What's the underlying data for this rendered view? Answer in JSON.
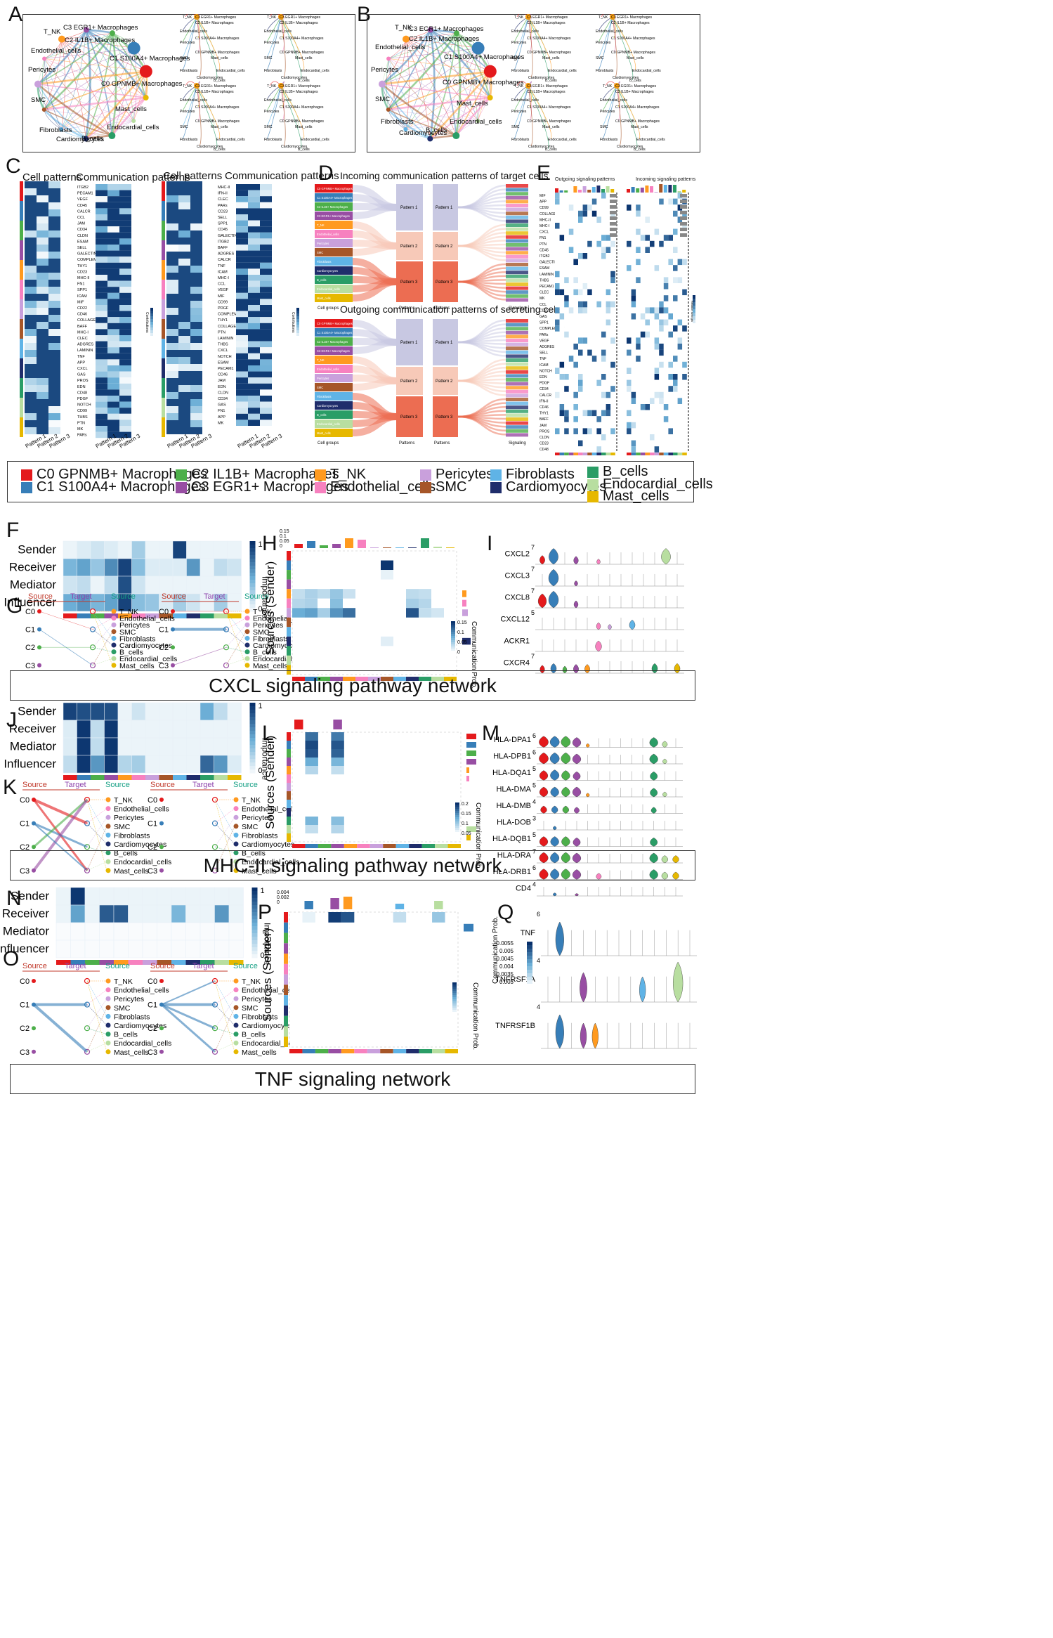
{
  "panel_letters": {
    "A": "A",
    "B": "B",
    "C": "C",
    "D": "D",
    "E": "E",
    "F": "F",
    "G": "G",
    "H": "H",
    "I": "I",
    "J": "J",
    "K": "K",
    "L": "L",
    "M": "M",
    "N": "N",
    "O": "O",
    "P": "P",
    "Q": "Q"
  },
  "cells": [
    "C0 GPNMB+ Macrophages",
    "C1 S100A4+ Macrophages",
    "C2 IL1B+ Macrophages",
    "C3 EGR1+ Macrophages",
    "T_NK",
    "Endothelial_cells",
    "Pericytes",
    "SMC",
    "Fibroblasts",
    "Cardiomyocytes",
    "B_cells",
    "Endocardial_cells",
    "Mast_cells"
  ],
  "cell_colors": [
    "#e41a1c",
    "#377eb8",
    "#4daf4a",
    "#984ea3",
    "#ff9a1f",
    "#f781bf",
    "#c9a0dc",
    "#a65628",
    "#5fb3e6",
    "#1f2d6b",
    "#2a9d66",
    "#b8dea0",
    "#e6b800"
  ],
  "panelA": {
    "big_labels": [
      "T_NK",
      "C3 EGR1+ Macrophages",
      "C2 IL1B+ Macrophages",
      "C1 S100A4+ Macrophages",
      "C0 GPNMB+ Macrophages",
      "Endothelial_cells",
      "Pericytes",
      "SMC",
      "Fibroblasts",
      "Cardiomyocytes",
      "B_cells",
      "Endocardial_cells",
      "Mast_cells"
    ],
    "small_labels": [
      "T_NK",
      "C3 EGR1+ Macrophages",
      "C2 IL1B+ Macrophages",
      "Endothelial_cells",
      "C1 S100A4+ Macrophages",
      "Pericytes",
      "C0 GPNMB+ Macrophages",
      "SMC",
      "Mast_cells",
      "Fibroblasts",
      "Endocardial_cells",
      "Cardiomyocytes",
      "B_cells"
    ]
  },
  "panelC": {
    "title_cell": "Cell patterns",
    "title_comm": "Communication patterns",
    "legend_title": "Contributions",
    "patterns": [
      "Pattern 1",
      "Pattern 2",
      "Pattern 3"
    ],
    "left_pathways": [
      "ITGB2",
      "PECAM1",
      "VEGF",
      "CD45",
      "CALCR",
      "CCL",
      "JAM",
      "CD34",
      "CLDN",
      "ESAM",
      "SELL",
      "GALECTIN",
      "COMPLEMENT",
      "THY1",
      "CD23",
      "MHC-II",
      "FN1",
      "SPP1",
      "ICAM",
      "MIF",
      "CD22",
      "CD46",
      "COLLAGEN",
      "BAFF",
      "MHC-I",
      "CLEC",
      "ADGRES",
      "LAMININ",
      "TNF",
      "APP",
      "CXCL",
      "GAS",
      "PROS",
      "EDN",
      "CD48",
      "PDGF",
      "NOTCH",
      "CD99",
      "THBS",
      "PTN",
      "MK",
      "PARs"
    ],
    "right_pathways": [
      "MHC-II",
      "IFN-II",
      "CLEC",
      "PARs",
      "CD23",
      "SELL",
      "SPP1",
      "CD45",
      "GALECTIN",
      "ITGB2",
      "BAFF",
      "ADGRES",
      "CALCR",
      "TNF",
      "ICAM",
      "MHC-I",
      "CCL",
      "VEGF",
      "MIF",
      "CD99",
      "PDGF",
      "COMPLEMENT",
      "THY1",
      "COLLAGEN",
      "PTN",
      "LAMININ",
      "THBS",
      "CXCL",
      "NOTCH",
      "ESAM",
      "PECAM1",
      "CD46",
      "JAM",
      "EDN",
      "CLDN",
      "CD34",
      "GAS",
      "FN1",
      "APP",
      "MK"
    ]
  },
  "panelD": {
    "title_in": "Incoming communication patterns of target cells",
    "title_out": "Outgoing communication patterns of secreting cells",
    "patterns": [
      "Pattern 1",
      "Pattern 2",
      "Pattern 3"
    ],
    "axis_cell": "Cell groups",
    "axis_pat": "Patterns",
    "axis_sig": "Signaling"
  },
  "panelE": {
    "title_out": "Outgoing signaling patterns",
    "title_in": "Incoming signaling patterns",
    "legend": "Relative strength",
    "pathways": [
      "MIF",
      "APP",
      "CD99",
      "COLLAGEN",
      "MHC-II",
      "MHC-I",
      "CXCL",
      "FN1",
      "PTN",
      "CD45",
      "ITGB2",
      "GALECTIN",
      "ESAM",
      "LAMININ",
      "THBS",
      "PECAM1",
      "CLEC",
      "MK",
      "CCL",
      "CD22",
      "GAS",
      "SPP1",
      "COMPLEMENT",
      "PARs",
      "VEGF",
      "ADGRES",
      "SELL",
      "TNF",
      "ICAM",
      "NOTCH",
      "EDN",
      "PDGF",
      "CD34",
      "CALCR",
      "IFN-II",
      "CD46",
      "THY1",
      "BAFF",
      "JAM",
      "PROS",
      "CLDN",
      "CD23",
      "CD48"
    ]
  },
  "legend": {
    "items": [
      "C0 GPNMB+ Macrophages",
      "C1 S100A4+ Macrophages",
      "C2 IL1B+ Macrophages",
      "C3 EGR1+ Macrophages",
      "T_NK",
      "Endothelial_cells",
      "Pericytes",
      "SMC",
      "Fibroblasts",
      "Cardiomyocytes",
      "B_cells",
      "Endocardial_cells",
      "Mast_cells"
    ]
  },
  "roles": [
    "Sender",
    "Receiver",
    "Mediator",
    "Influencer"
  ],
  "importance": {
    "label": "Importance",
    "max": "1",
    "min": "0"
  },
  "hierarchy": {
    "source": "Source",
    "target": "Target",
    "nodes": [
      "C0",
      "C1",
      "C2",
      "C3"
    ],
    "right_list": [
      "T_NK",
      "Endothelial_cells",
      "Pericytes",
      "SMC",
      "Fibroblasts",
      "Cardiomyocytes",
      "B_cells",
      "Endocardial_cells",
      "Mast_cells"
    ]
  },
  "sources_sender": "Sources (Sender)",
  "comm_prob": "Communication Prob.",
  "cxcl": {
    "banner": "CXCL signaling pathway network",
    "h_top_ticks": [
      "0.15",
      "0.1",
      "0.05",
      "0"
    ],
    "h_legend_ticks": [
      "0.15",
      "0.1",
      "0.05",
      "0"
    ],
    "genes": [
      "CXCL2",
      "CXCL3",
      "CXCL8",
      "CXCL12",
      "ACKR1",
      "CXCR4"
    ],
    "gene_max": [
      "7",
      "7",
      "7",
      "5",
      "",
      "7"
    ]
  },
  "mhc": {
    "banner": "MHC-II signaling pathway network",
    "l_legend_ticks": [
      "0.2",
      "0.15",
      "0.1",
      "0.05"
    ],
    "genes": [
      "HLA-DPA1",
      "HLA-DPB1",
      "HLA-DQA1",
      "HLA-DMA",
      "HLA-DMB",
      "HLA-DOB",
      "HLA-DQB1",
      "HLA-DRA",
      "HLA-DRB1",
      "CD4"
    ],
    "gene_max": [
      "6",
      "6",
      "5",
      "5",
      "4",
      "3",
      "5",
      "7",
      "6",
      "4"
    ]
  },
  "tnf": {
    "banner": "TNF signaling network",
    "p_top_ticks": [
      "0.004",
      "0.002",
      "0"
    ],
    "p_legend_ticks": [
      "0.0055",
      "0.005",
      "0.0045",
      "0.004",
      "0.0035",
      "0.003"
    ],
    "genes": [
      "TNF",
      "TNFRSF1A",
      "TNFRSF1B"
    ],
    "gene_max": [
      "6",
      "4",
      "4"
    ]
  },
  "chart_data": [
    {
      "type": "heatmap",
      "title": "",
      "rows": [
        "Sender",
        "Receiver",
        "Mediator",
        "Influencer"
      ],
      "note": "F CXCL role importance",
      "values": [
        [
          0.05,
          0.1,
          0.15,
          0.1,
          0.05,
          0.3,
          0.05,
          0.05,
          0.95,
          0.05,
          0.05,
          0.05,
          0.05
        ],
        [
          0.45,
          0.55,
          0.35,
          0.65,
          0.95,
          0.4,
          0.1,
          0.1,
          0.1,
          0.6,
          0.05,
          0.2,
          0.15
        ],
        [
          0.15,
          0.2,
          0.05,
          0.2,
          0.9,
          0.15,
          0.05,
          0.05,
          0.05,
          0.05,
          0.05,
          0.05,
          0.05
        ],
        [
          0.5,
          0.6,
          0.45,
          0.55,
          0.95,
          0.4,
          0.35,
          0.1,
          0.3,
          0.15,
          0.05,
          0.3,
          0.05
        ]
      ]
    },
    {
      "type": "heatmap",
      "title": "",
      "rows": [
        "Sender",
        "Receiver",
        "Mediator",
        "Influencer"
      ],
      "note": "J MHC-II role importance",
      "values": [
        [
          0.95,
          0.9,
          0.9,
          0.9,
          0.05,
          0.15,
          0.05,
          0.05,
          0.05,
          0.05,
          0.5,
          0.2,
          0.05
        ],
        [
          0.1,
          1.0,
          0.2,
          1.0,
          0.05,
          0.05,
          0.05,
          0.05,
          0.05,
          0.05,
          0.05,
          0.05,
          0.05
        ],
        [
          0.1,
          1.0,
          0.2,
          1.0,
          0.05,
          0.05,
          0.05,
          0.05,
          0.05,
          0.05,
          0.05,
          0.05,
          0.05
        ],
        [
          0.2,
          1.0,
          0.6,
          1.0,
          0.25,
          0.3,
          0.05,
          0.05,
          0.05,
          0.05,
          0.8,
          0.6,
          0.1
        ]
      ]
    },
    {
      "type": "heatmap",
      "title": "",
      "rows": [
        "Sender",
        "Receiver",
        "Mediator",
        "Influencer"
      ],
      "note": "N TNF role importance",
      "values": [
        [
          0.05,
          1.0,
          0.05,
          0.05,
          0.05,
          0.05,
          0.05,
          0.05,
          0.05,
          0.05,
          0.05,
          0.05,
          0.05
        ],
        [
          0.05,
          0.55,
          0.05,
          0.85,
          0.85,
          0.05,
          0.05,
          0.05,
          0.45,
          0.05,
          0.05,
          0.6,
          0.05
        ],
        [
          0,
          0,
          0,
          0,
          0,
          0,
          0,
          0,
          0,
          0,
          0,
          0,
          0
        ],
        [
          0,
          0,
          0,
          0,
          0,
          0,
          0,
          0,
          0,
          0,
          0,
          0,
          0
        ]
      ]
    }
  ]
}
